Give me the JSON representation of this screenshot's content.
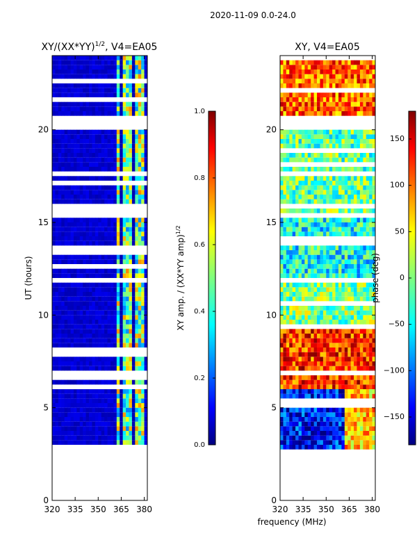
{
  "figure": {
    "suptitle": "2020-11-09 0.0-24.0",
    "xlabel": "frequency (MHz)"
  },
  "chart_data": [
    {
      "type": "heatmap",
      "title": "XY/(XX*YY)",
      "title_superscript": "1/2",
      "title_suffix": ", V4=EA05",
      "xlabel": "",
      "ylabel": "UT (hours)",
      "xlim": [
        320,
        382
      ],
      "ylim": [
        0,
        24
      ],
      "xticks": [
        320,
        335,
        350,
        365,
        380
      ],
      "yticks": [
        0,
        5,
        10,
        15,
        20
      ],
      "colorbar": {
        "label": "XY amp. / (XX*YY amp)",
        "label_superscript": "1/2",
        "range": [
          0.0,
          1.0
        ],
        "ticks": [
          "0.0",
          "0.2",
          "0.4",
          "0.6",
          "0.8",
          "1.0"
        ],
        "colormap": "jet"
      },
      "data_coverage_hours": [
        [
          2.6,
          11.6
        ],
        [
          11.8,
          15.2
        ],
        [
          15.4,
          20.0
        ],
        [
          20.6,
          24.0
        ]
      ],
      "high_value_band_mhz": [
        362,
        380
      ],
      "background_value": 0.05,
      "band_value": 0.5
    },
    {
      "type": "heatmap",
      "title": "XY, V4=EA05",
      "xlabel": "",
      "ylabel": "",
      "xlim": [
        320,
        382
      ],
      "ylim": [
        0,
        24
      ],
      "xticks": [
        320,
        335,
        350,
        365,
        380
      ],
      "yticks": [
        0,
        5,
        10,
        15,
        20
      ],
      "colorbar": {
        "label": "phase (deg)",
        "range": [
          -180,
          180
        ],
        "ticks": [
          "−150",
          "−100",
          "−50",
          "0",
          "50",
          "100",
          "150"
        ],
        "tick_values": [
          -150,
          -100,
          -50,
          0,
          50,
          100,
          150
        ],
        "colormap": "jet"
      },
      "data_coverage_hours": [
        [
          2.6,
          11.6
        ],
        [
          11.8,
          15.2
        ],
        [
          15.4,
          20.0
        ],
        [
          20.6,
          24.0
        ]
      ],
      "phase_regions": [
        {
          "hours": [
            2.6,
            6.0
          ],
          "mhz": [
            320,
            362
          ],
          "phase_deg": -130
        },
        {
          "hours": [
            2.6,
            6.0
          ],
          "mhz": [
            362,
            382
          ],
          "phase_deg": 60
        },
        {
          "hours": [
            6.0,
            9.5
          ],
          "mhz": [
            320,
            382
          ],
          "phase_deg": 120
        },
        {
          "hours": [
            11.6,
            15.2
          ],
          "mhz": [
            320,
            382
          ],
          "phase_deg": -40
        },
        {
          "hours": [
            15.4,
            20.0
          ],
          "mhz": [
            320,
            382
          ],
          "phase_deg": -10
        },
        {
          "hours": [
            20.6,
            24.0
          ],
          "mhz": [
            320,
            382
          ],
          "phase_deg": 100
        }
      ]
    }
  ]
}
